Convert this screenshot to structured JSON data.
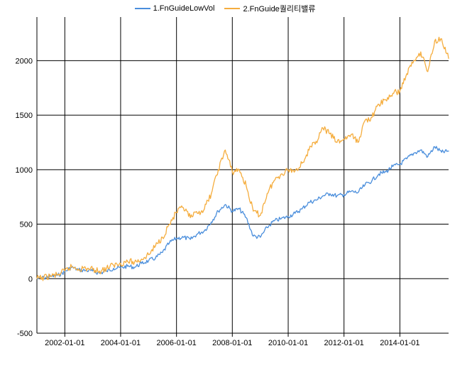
{
  "chart_data": {
    "type": "line",
    "title": "",
    "xlabel": "",
    "ylabel": "",
    "legend_position": "top-center",
    "grid": true,
    "ylim": [
      -500,
      2400
    ],
    "y_ticks": [
      -500,
      0,
      500,
      1000,
      1500,
      2000
    ],
    "x_ticks": [
      "2002-01-01",
      "2004-01-01",
      "2006-01-01",
      "2008-01-01",
      "2010-01-01",
      "2012-01-01",
      "2014-01-01"
    ],
    "xlim": [
      "2001-01-01",
      "2015-09-30"
    ],
    "series": [
      {
        "name": "1.FnGuideLowVol",
        "color": "#4a8edc",
        "points": [
          [
            "2001-01-01",
            0
          ],
          [
            "2001-04-01",
            8
          ],
          [
            "2001-07-01",
            20
          ],
          [
            "2001-10-01",
            30
          ],
          [
            "2002-01-01",
            65
          ],
          [
            "2002-04-01",
            105
          ],
          [
            "2002-07-01",
            80
          ],
          [
            "2002-10-01",
            75
          ],
          [
            "2003-01-01",
            70
          ],
          [
            "2003-04-01",
            50
          ],
          [
            "2003-07-01",
            70
          ],
          [
            "2003-10-01",
            95
          ],
          [
            "2004-01-01",
            100
          ],
          [
            "2004-04-01",
            115
          ],
          [
            "2004-07-01",
            105
          ],
          [
            "2004-10-01",
            140
          ],
          [
            "2005-01-01",
            165
          ],
          [
            "2005-04-01",
            190
          ],
          [
            "2005-07-01",
            240
          ],
          [
            "2005-10-01",
            330
          ],
          [
            "2006-01-01",
            370
          ],
          [
            "2006-04-01",
            380
          ],
          [
            "2006-07-01",
            360
          ],
          [
            "2006-10-01",
            410
          ],
          [
            "2007-01-01",
            440
          ],
          [
            "2007-04-01",
            520
          ],
          [
            "2007-07-01",
            620
          ],
          [
            "2007-10-01",
            680
          ],
          [
            "2008-01-01",
            620
          ],
          [
            "2008-04-01",
            640
          ],
          [
            "2008-07-01",
            560
          ],
          [
            "2008-10-01",
            390
          ],
          [
            "2009-01-01",
            380
          ],
          [
            "2009-04-01",
            470
          ],
          [
            "2009-07-01",
            530
          ],
          [
            "2009-10-01",
            550
          ],
          [
            "2010-01-01",
            570
          ],
          [
            "2010-04-01",
            600
          ],
          [
            "2010-07-01",
            640
          ],
          [
            "2010-10-01",
            700
          ],
          [
            "2011-01-01",
            720
          ],
          [
            "2011-04-01",
            760
          ],
          [
            "2011-07-01",
            780
          ],
          [
            "2011-10-01",
            760
          ],
          [
            "2012-01-01",
            770
          ],
          [
            "2012-04-01",
            800
          ],
          [
            "2012-07-01",
            790
          ],
          [
            "2012-10-01",
            860
          ],
          [
            "2013-01-01",
            900
          ],
          [
            "2013-04-01",
            960
          ],
          [
            "2013-07-01",
            980
          ],
          [
            "2013-10-01",
            1030
          ],
          [
            "2014-01-01",
            1050
          ],
          [
            "2014-04-01",
            1100
          ],
          [
            "2014-07-01",
            1150
          ],
          [
            "2014-10-01",
            1180
          ],
          [
            "2015-01-01",
            1120
          ],
          [
            "2015-04-01",
            1210
          ],
          [
            "2015-07-01",
            1160
          ],
          [
            "2015-09-30",
            1170
          ]
        ]
      },
      {
        "name": "2.FnGuide퀄리티밸류",
        "color": "#f5ad3e",
        "points": [
          [
            "2001-01-01",
            0
          ],
          [
            "2001-04-01",
            10
          ],
          [
            "2001-07-01",
            25
          ],
          [
            "2001-10-01",
            35
          ],
          [
            "2002-01-01",
            70
          ],
          [
            "2002-04-01",
            110
          ],
          [
            "2002-07-01",
            90
          ],
          [
            "2002-10-01",
            95
          ],
          [
            "2003-01-01",
            85
          ],
          [
            "2003-04-01",
            70
          ],
          [
            "2003-07-01",
            95
          ],
          [
            "2003-10-01",
            125
          ],
          [
            "2004-01-01",
            140
          ],
          [
            "2004-04-01",
            160
          ],
          [
            "2004-07-01",
            150
          ],
          [
            "2004-10-01",
            180
          ],
          [
            "2005-01-01",
            220
          ],
          [
            "2005-04-01",
            300
          ],
          [
            "2005-07-01",
            380
          ],
          [
            "2005-10-01",
            500
          ],
          [
            "2006-01-01",
            610
          ],
          [
            "2006-04-01",
            650
          ],
          [
            "2006-07-01",
            560
          ],
          [
            "2006-10-01",
            600
          ],
          [
            "2007-01-01",
            640
          ],
          [
            "2007-04-01",
            780
          ],
          [
            "2007-07-01",
            1000
          ],
          [
            "2007-10-01",
            1180
          ],
          [
            "2008-01-01",
            980
          ],
          [
            "2008-04-01",
            1000
          ],
          [
            "2008-07-01",
            850
          ],
          [
            "2008-10-01",
            620
          ],
          [
            "2009-01-01",
            580
          ],
          [
            "2009-04-01",
            780
          ],
          [
            "2009-07-01",
            900
          ],
          [
            "2009-10-01",
            960
          ],
          [
            "2010-01-01",
            1000
          ],
          [
            "2010-04-01",
            990
          ],
          [
            "2010-07-01",
            1060
          ],
          [
            "2010-10-01",
            1180
          ],
          [
            "2011-01-01",
            1260
          ],
          [
            "2011-04-01",
            1380
          ],
          [
            "2011-07-01",
            1330
          ],
          [
            "2011-10-01",
            1250
          ],
          [
            "2012-01-01",
            1280
          ],
          [
            "2012-04-01",
            1320
          ],
          [
            "2012-07-01",
            1250
          ],
          [
            "2012-10-01",
            1450
          ],
          [
            "2013-01-01",
            1480
          ],
          [
            "2013-04-01",
            1600
          ],
          [
            "2013-07-01",
            1640
          ],
          [
            "2013-10-01",
            1700
          ],
          [
            "2014-01-01",
            1720
          ],
          [
            "2014-04-01",
            1880
          ],
          [
            "2014-07-01",
            2000
          ],
          [
            "2014-10-01",
            2080
          ],
          [
            "2015-01-01",
            1900
          ],
          [
            "2015-04-01",
            2180
          ],
          [
            "2015-07-01",
            2200
          ],
          [
            "2015-09-30",
            2020
          ]
        ]
      }
    ]
  }
}
